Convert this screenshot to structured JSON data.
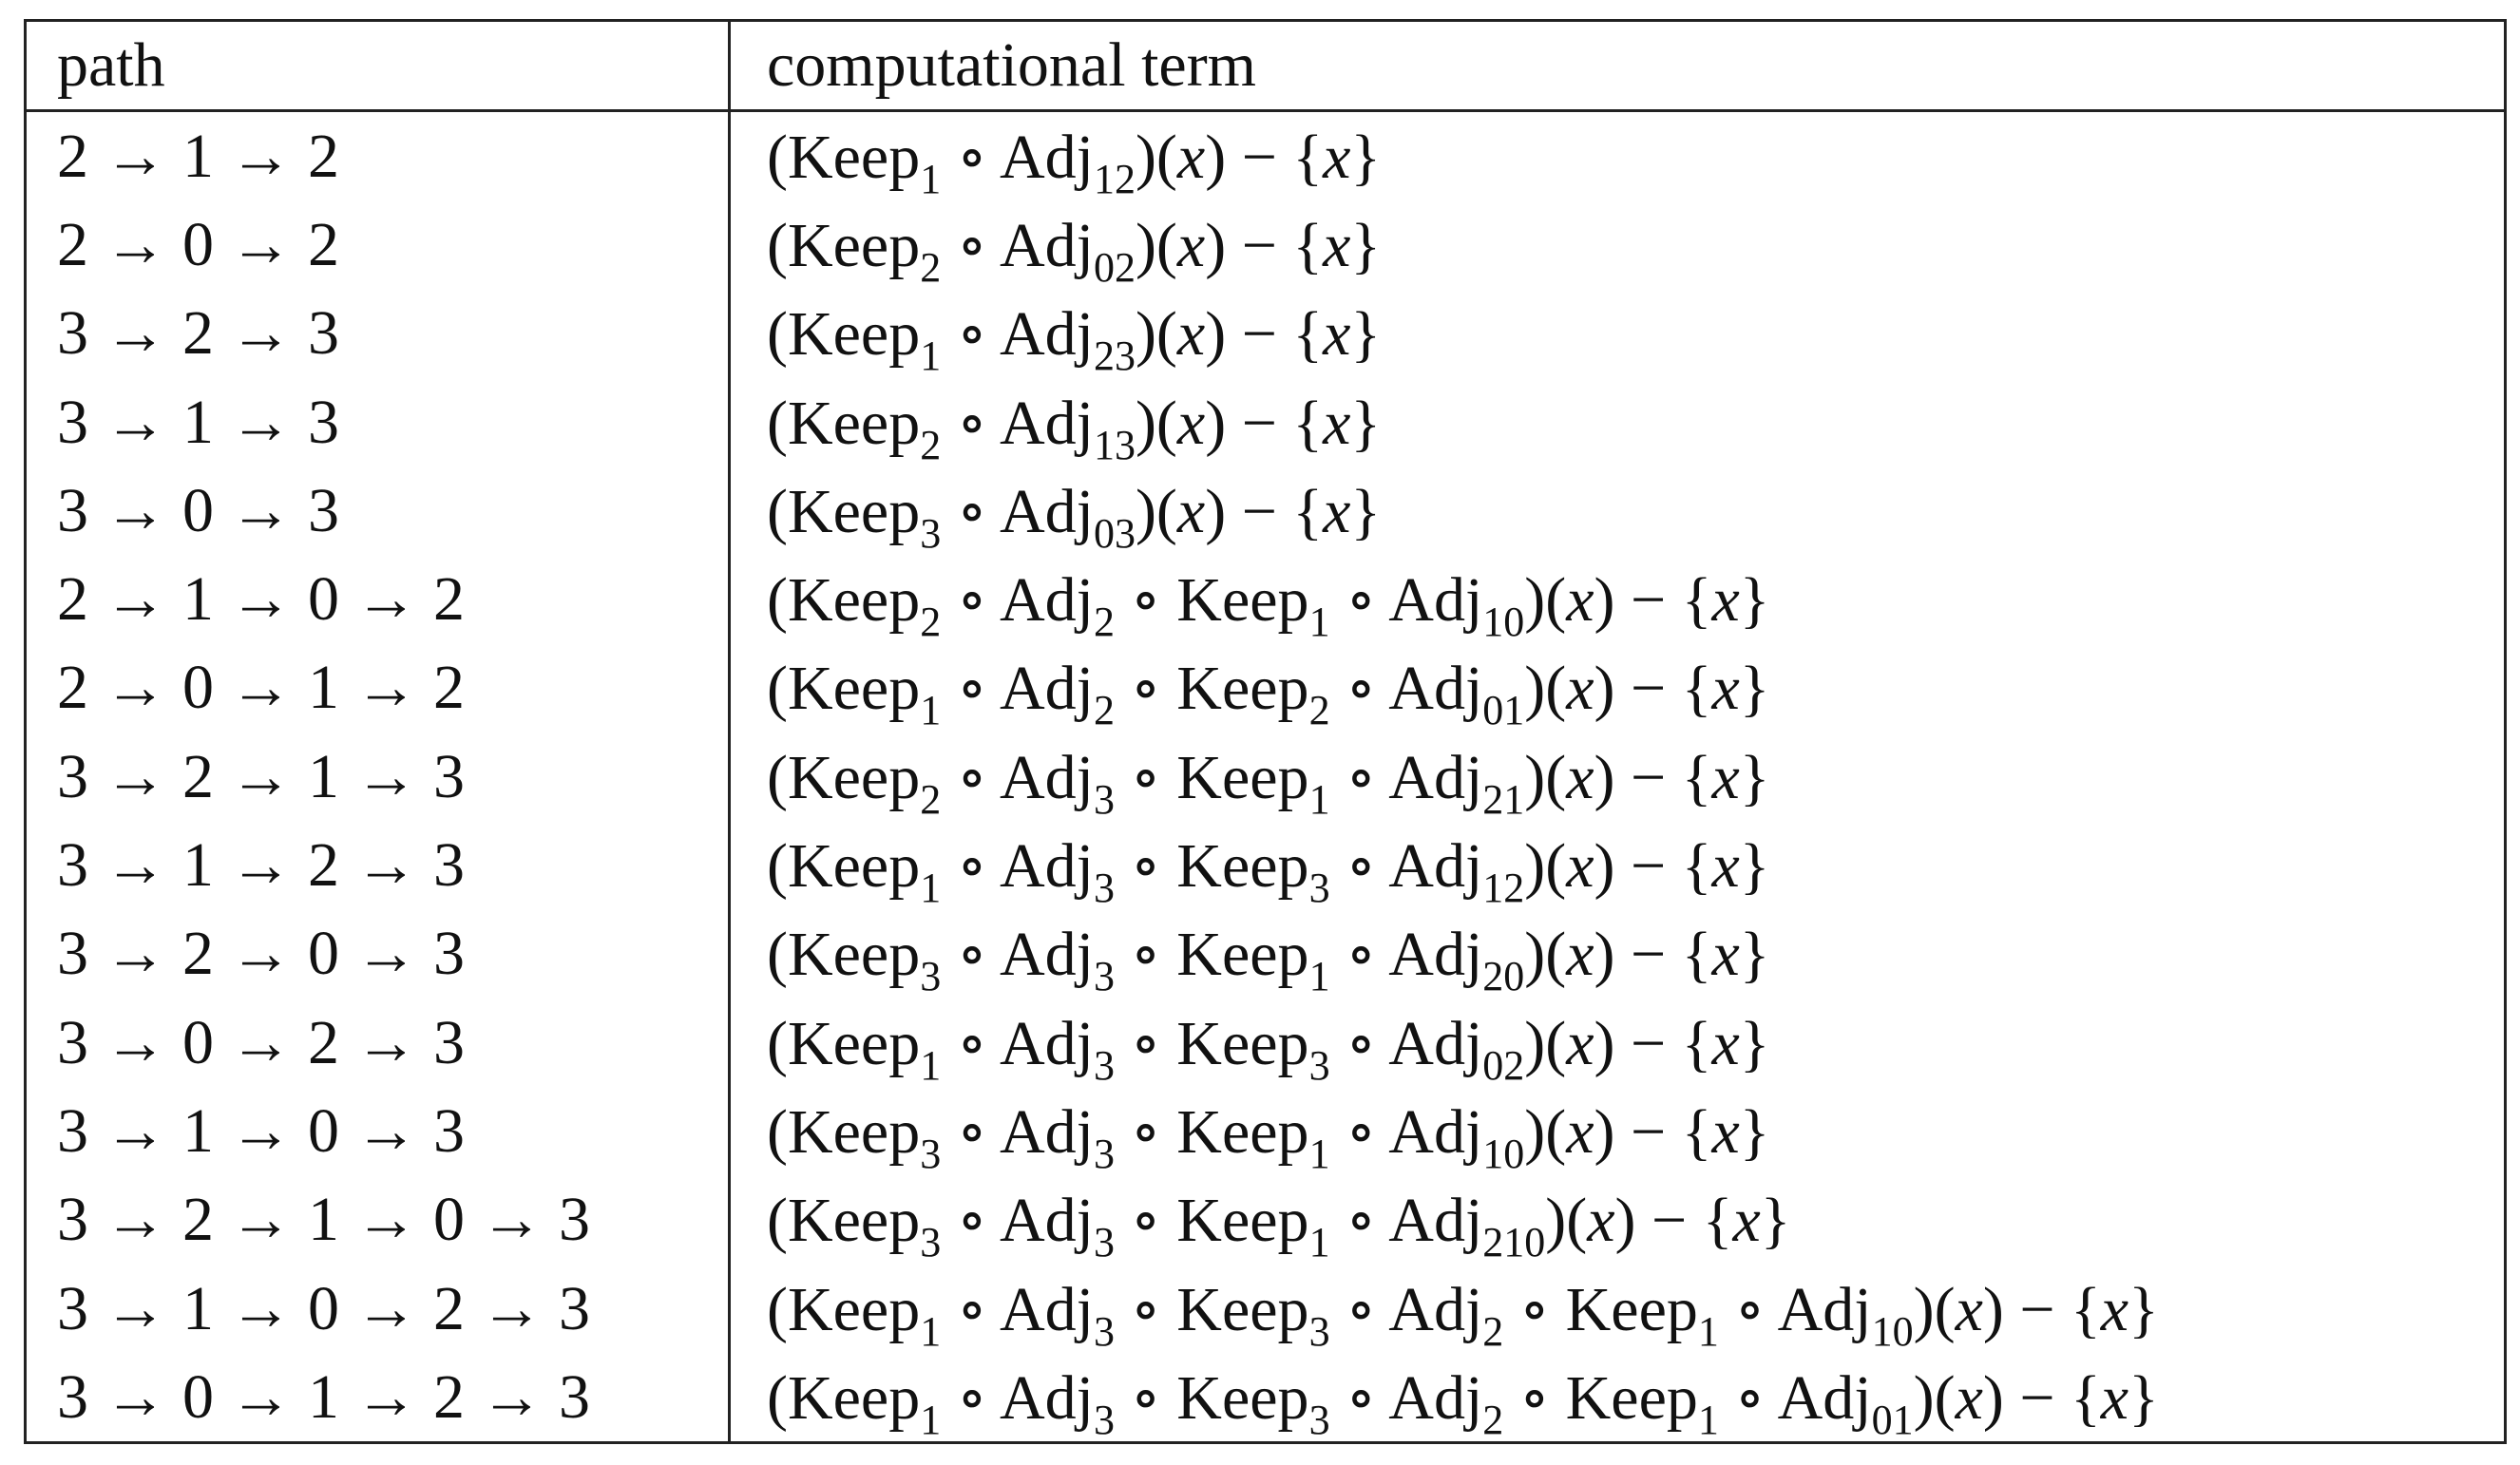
{
  "header": {
    "path": "path",
    "term": "computational term"
  },
  "rows": [
    {
      "path": "2 → 1 → 2",
      "term": [
        "(Keep",
        {
          "sub": "1"
        },
        " ∘ Adj",
        {
          "sub": "12"
        },
        ")(",
        {
          "math": "x"
        },
        ") − {",
        {
          "math": "x"
        },
        "}"
      ]
    },
    {
      "path": "2 → 0 → 2",
      "term": [
        "(Keep",
        {
          "sub": "2"
        },
        " ∘ Adj",
        {
          "sub": "02"
        },
        ")(",
        {
          "math": "x"
        },
        ") − {",
        {
          "math": "x"
        },
        "}"
      ]
    },
    {
      "path": "3 → 2 → 3",
      "term": [
        "(Keep",
        {
          "sub": "1"
        },
        " ∘ Adj",
        {
          "sub": "23"
        },
        ")(",
        {
          "math": "x"
        },
        ") − {",
        {
          "math": "x"
        },
        "}"
      ]
    },
    {
      "path": "3 → 1 → 3",
      "term": [
        "(Keep",
        {
          "sub": "2"
        },
        " ∘ Adj",
        {
          "sub": "13"
        },
        ")(",
        {
          "math": "x"
        },
        ") − {",
        {
          "math": "x"
        },
        "}"
      ]
    },
    {
      "path": "3 → 0 → 3",
      "term": [
        "(Keep",
        {
          "sub": "3"
        },
        " ∘ Adj",
        {
          "sub": "03"
        },
        ")(",
        {
          "math": "x"
        },
        ") − {",
        {
          "math": "x"
        },
        "}"
      ]
    },
    {
      "path": "2 → 1 → 0 → 2",
      "term": [
        "(Keep",
        {
          "sub": "2"
        },
        " ∘ Adj",
        {
          "sub": "2"
        },
        " ∘ Keep",
        {
          "sub": "1"
        },
        " ∘ Adj",
        {
          "sub": "10"
        },
        ")(",
        {
          "math": "x"
        },
        ") − {",
        {
          "math": "x"
        },
        "}"
      ]
    },
    {
      "path": "2 → 0 → 1 → 2",
      "term": [
        "(Keep",
        {
          "sub": "1"
        },
        " ∘ Adj",
        {
          "sub": "2"
        },
        " ∘ Keep",
        {
          "sub": "2"
        },
        " ∘ Adj",
        {
          "sub": "01"
        },
        ")(",
        {
          "math": "x"
        },
        ") − {",
        {
          "math": "x"
        },
        "}"
      ]
    },
    {
      "path": "3 → 2 → 1 → 3",
      "term": [
        "(Keep",
        {
          "sub": "2"
        },
        " ∘ Adj",
        {
          "sub": "3"
        },
        " ∘ Keep",
        {
          "sub": "1"
        },
        " ∘ Adj",
        {
          "sub": "21"
        },
        ")(",
        {
          "math": "x"
        },
        ") − {",
        {
          "math": "x"
        },
        "}"
      ]
    },
    {
      "path": "3 → 1 → 2 → 3",
      "term": [
        "(Keep",
        {
          "sub": "1"
        },
        " ∘ Adj",
        {
          "sub": "3"
        },
        " ∘ Keep",
        {
          "sub": "3"
        },
        " ∘ Adj",
        {
          "sub": "12"
        },
        ")(",
        {
          "math": "x"
        },
        ") − {",
        {
          "math": "x"
        },
        "}"
      ]
    },
    {
      "path": "3 → 2 → 0 → 3",
      "term": [
        "(Keep",
        {
          "sub": "3"
        },
        " ∘ Adj",
        {
          "sub": "3"
        },
        " ∘ Keep",
        {
          "sub": "1"
        },
        " ∘ Adj",
        {
          "sub": "20"
        },
        ")(",
        {
          "math": "x"
        },
        ") − {",
        {
          "math": "x"
        },
        "}"
      ]
    },
    {
      "path": "3 → 0 → 2 → 3",
      "term": [
        "(Keep",
        {
          "sub": "1"
        },
        " ∘ Adj",
        {
          "sub": "3"
        },
        " ∘ Keep",
        {
          "sub": "3"
        },
        " ∘ Adj",
        {
          "sub": "02"
        },
        ")(",
        {
          "math": "x"
        },
        ") − {",
        {
          "math": "x"
        },
        "}"
      ]
    },
    {
      "path": "3 → 1 → 0 → 3",
      "term": [
        "(Keep",
        {
          "sub": "3"
        },
        " ∘ Adj",
        {
          "sub": "3"
        },
        " ∘ Keep",
        {
          "sub": "1"
        },
        " ∘ Adj",
        {
          "sub": "10"
        },
        ")(",
        {
          "math": "x"
        },
        ") − {",
        {
          "math": "x"
        },
        "}"
      ]
    },
    {
      "path": "3 → 2 → 1 → 0 → 3",
      "term": [
        "(Keep",
        {
          "sub": "3"
        },
        " ∘ Adj",
        {
          "sub": "3"
        },
        " ∘ Keep",
        {
          "sub": "1"
        },
        " ∘ Adj",
        {
          "sub": "210"
        },
        ")(",
        {
          "math": "x"
        },
        ") − {",
        {
          "math": "x"
        },
        "}"
      ]
    },
    {
      "path": "3 → 1 → 0 → 2 → 3",
      "term": [
        "(Keep",
        {
          "sub": "1"
        },
        " ∘ Adj",
        {
          "sub": "3"
        },
        " ∘ Keep",
        {
          "sub": "3"
        },
        " ∘ Adj",
        {
          "sub": "2"
        },
        " ∘ Keep",
        {
          "sub": "1"
        },
        " ∘ Adj",
        {
          "sub": "10"
        },
        ")(",
        {
          "math": "x"
        },
        ") − {",
        {
          "math": "x"
        },
        "}"
      ]
    },
    {
      "path": "3 → 0 → 1 → 2 → 3",
      "term": [
        "(Keep",
        {
          "sub": "1"
        },
        " ∘ Adj",
        {
          "sub": "3"
        },
        " ∘ Keep",
        {
          "sub": "3"
        },
        " ∘ Adj",
        {
          "sub": "2"
        },
        " ∘ Keep",
        {
          "sub": "1"
        },
        " ∘ Adj",
        {
          "sub": "01"
        },
        ")(",
        {
          "math": "x"
        },
        ") − {",
        {
          "math": "x"
        },
        "}"
      ]
    }
  ]
}
